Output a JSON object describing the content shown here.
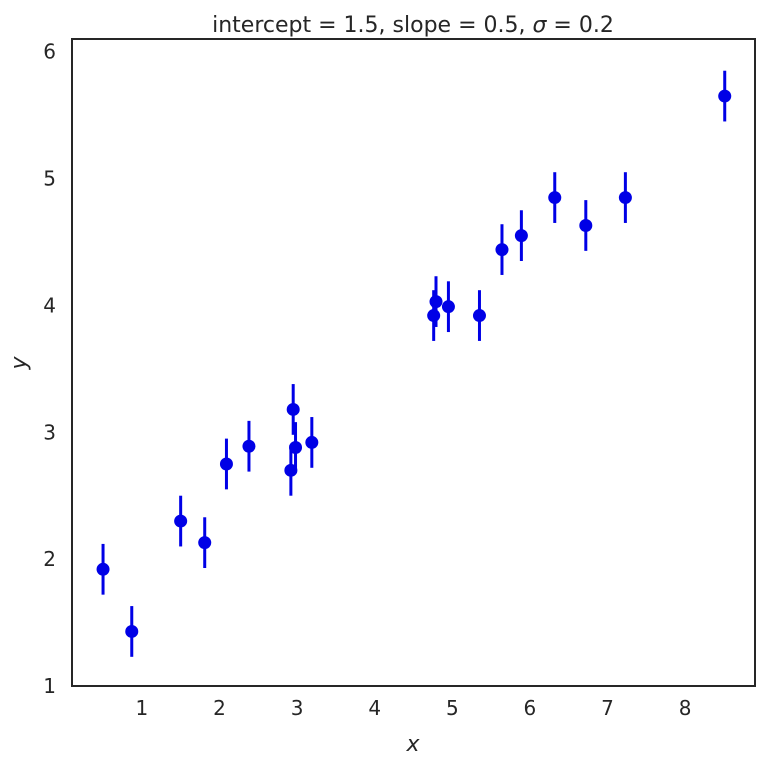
{
  "chart_data": {
    "type": "scatter",
    "title": "intercept $=1.5$, slope $=0.5$,  $\\sigma=0.2$",
    "title_parts": {
      "intercept_text": "intercept ",
      "intercept_value": "= 1.5",
      "slope_text": ", slope ",
      "slope_value": "= 0.5",
      "sigma_sep": ",  ",
      "sigma_symbol": "σ",
      "sigma_value": " = 0.2"
    },
    "xlabel": "x",
    "ylabel": "y",
    "xlim": [
      0.1,
      8.9
    ],
    "ylim": [
      1.0,
      6.1
    ],
    "xticks": [
      "1",
      "2",
      "3",
      "4",
      "5",
      "6",
      "7",
      "8"
    ],
    "yticks": [
      "1",
      "2",
      "3",
      "4",
      "5",
      "6"
    ],
    "grid": false,
    "marker_color": "#0000e6",
    "error": 0.2,
    "points": [
      {
        "x": 0.5,
        "y": 1.92
      },
      {
        "x": 0.87,
        "y": 1.43
      },
      {
        "x": 1.5,
        "y": 2.3
      },
      {
        "x": 1.81,
        "y": 2.13
      },
      {
        "x": 2.09,
        "y": 2.75
      },
      {
        "x": 2.38,
        "y": 2.89
      },
      {
        "x": 2.92,
        "y": 2.7
      },
      {
        "x": 2.95,
        "y": 3.18
      },
      {
        "x": 2.98,
        "y": 2.88
      },
      {
        "x": 3.19,
        "y": 2.92
      },
      {
        "x": 4.76,
        "y": 3.92
      },
      {
        "x": 4.79,
        "y": 4.03
      },
      {
        "x": 4.95,
        "y": 3.99
      },
      {
        "x": 5.35,
        "y": 3.92
      },
      {
        "x": 5.64,
        "y": 4.44
      },
      {
        "x": 5.89,
        "y": 4.55
      },
      {
        "x": 6.32,
        "y": 4.85
      },
      {
        "x": 6.72,
        "y": 4.63
      },
      {
        "x": 7.23,
        "y": 4.85
      },
      {
        "x": 8.51,
        "y": 5.65
      }
    ]
  }
}
